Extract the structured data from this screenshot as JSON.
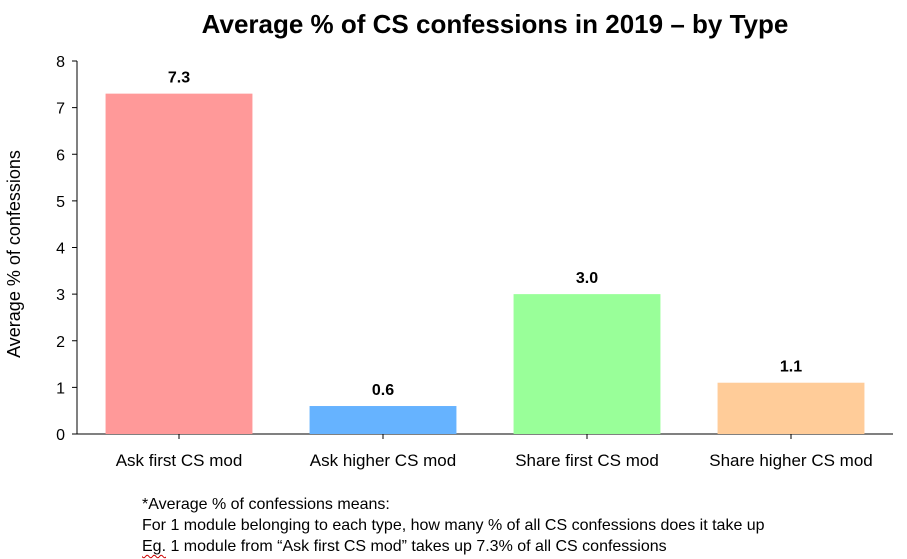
{
  "chart_data": {
    "type": "bar",
    "title": "Average % of CS confessions in 2019 – by Type",
    "xlabel": "",
    "ylabel": "Average % of confessions",
    "ylim": [
      0,
      8
    ],
    "yticks": [
      0,
      1,
      2,
      3,
      4,
      5,
      6,
      7,
      8
    ],
    "grid": false,
    "legend": "none",
    "categories": [
      "Ask first CS mod",
      "Ask higher CS mod",
      "Share first CS mod",
      "Share higher CS mod"
    ],
    "values": [
      7.3,
      0.6,
      3.0,
      1.1
    ],
    "data_labels": [
      "7.3",
      "0.6",
      "3.0",
      "1.1"
    ],
    "colors": [
      "#ff9999",
      "#66b3ff",
      "#99ff99",
      "#ffcc99"
    ]
  },
  "footnote": {
    "line1": "*Average % of confessions means:",
    "line2": "For 1 module belonging to each type, how many % of all CS confessions does it take up",
    "line3_prefix": "Eg.",
    "line3_rest": " 1 module from “Ask first CS mod” takes up 7.3% of all CS confessions"
  }
}
